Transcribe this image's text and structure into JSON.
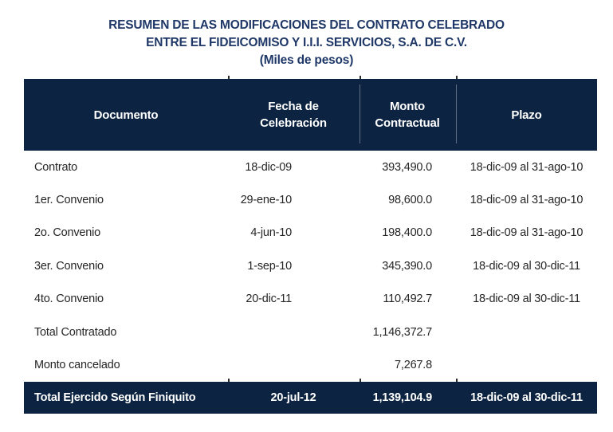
{
  "title": {
    "line1": "RESUMEN DE LAS MODIFICACIONES DEL CONTRATO CELEBRADO",
    "line2": "ENTRE EL FIDEICOMISO Y I.I.I. SERVICIOS, S.A. DE C.V.",
    "line3": "(Miles de pesos)"
  },
  "table": {
    "headers": [
      "Documento",
      "Fecha de Celebración",
      "Monto Contractual",
      "Plazo"
    ],
    "rows": [
      [
        "Contrato",
        "18-dic-09",
        "393,490.0",
        "18-dic-09 al 31-ago-10"
      ],
      [
        "1er. Convenio",
        "29-ene-10",
        "98,600.0",
        "18-dic-09 al 31-ago-10"
      ],
      [
        "2o. Convenio",
        "4-jun-10",
        "198,400.0",
        "18-dic-09 al 31-ago-10"
      ],
      [
        "3er. Convenio",
        "1-sep-10",
        "345,390.0",
        "18-dic-09 al 30-dic-11"
      ],
      [
        "4to. Convenio",
        "20-dic-11",
        "110,492.7",
        "18-dic-09 al 30-dic-11"
      ],
      [
        "Total Contratado",
        "",
        "1,146,372.7",
        ""
      ],
      [
        "Monto cancelado",
        "",
        "7,267.8",
        ""
      ]
    ],
    "footer": [
      "Total Ejercido Según Finiquito",
      "20-jul-12",
      "1,139,104.9",
      "18-dic-09 al 30-dic-11"
    ]
  },
  "colors": {
    "header_navy": "#0c2341",
    "title_text": "#1f3868",
    "body_text": "#262626"
  }
}
